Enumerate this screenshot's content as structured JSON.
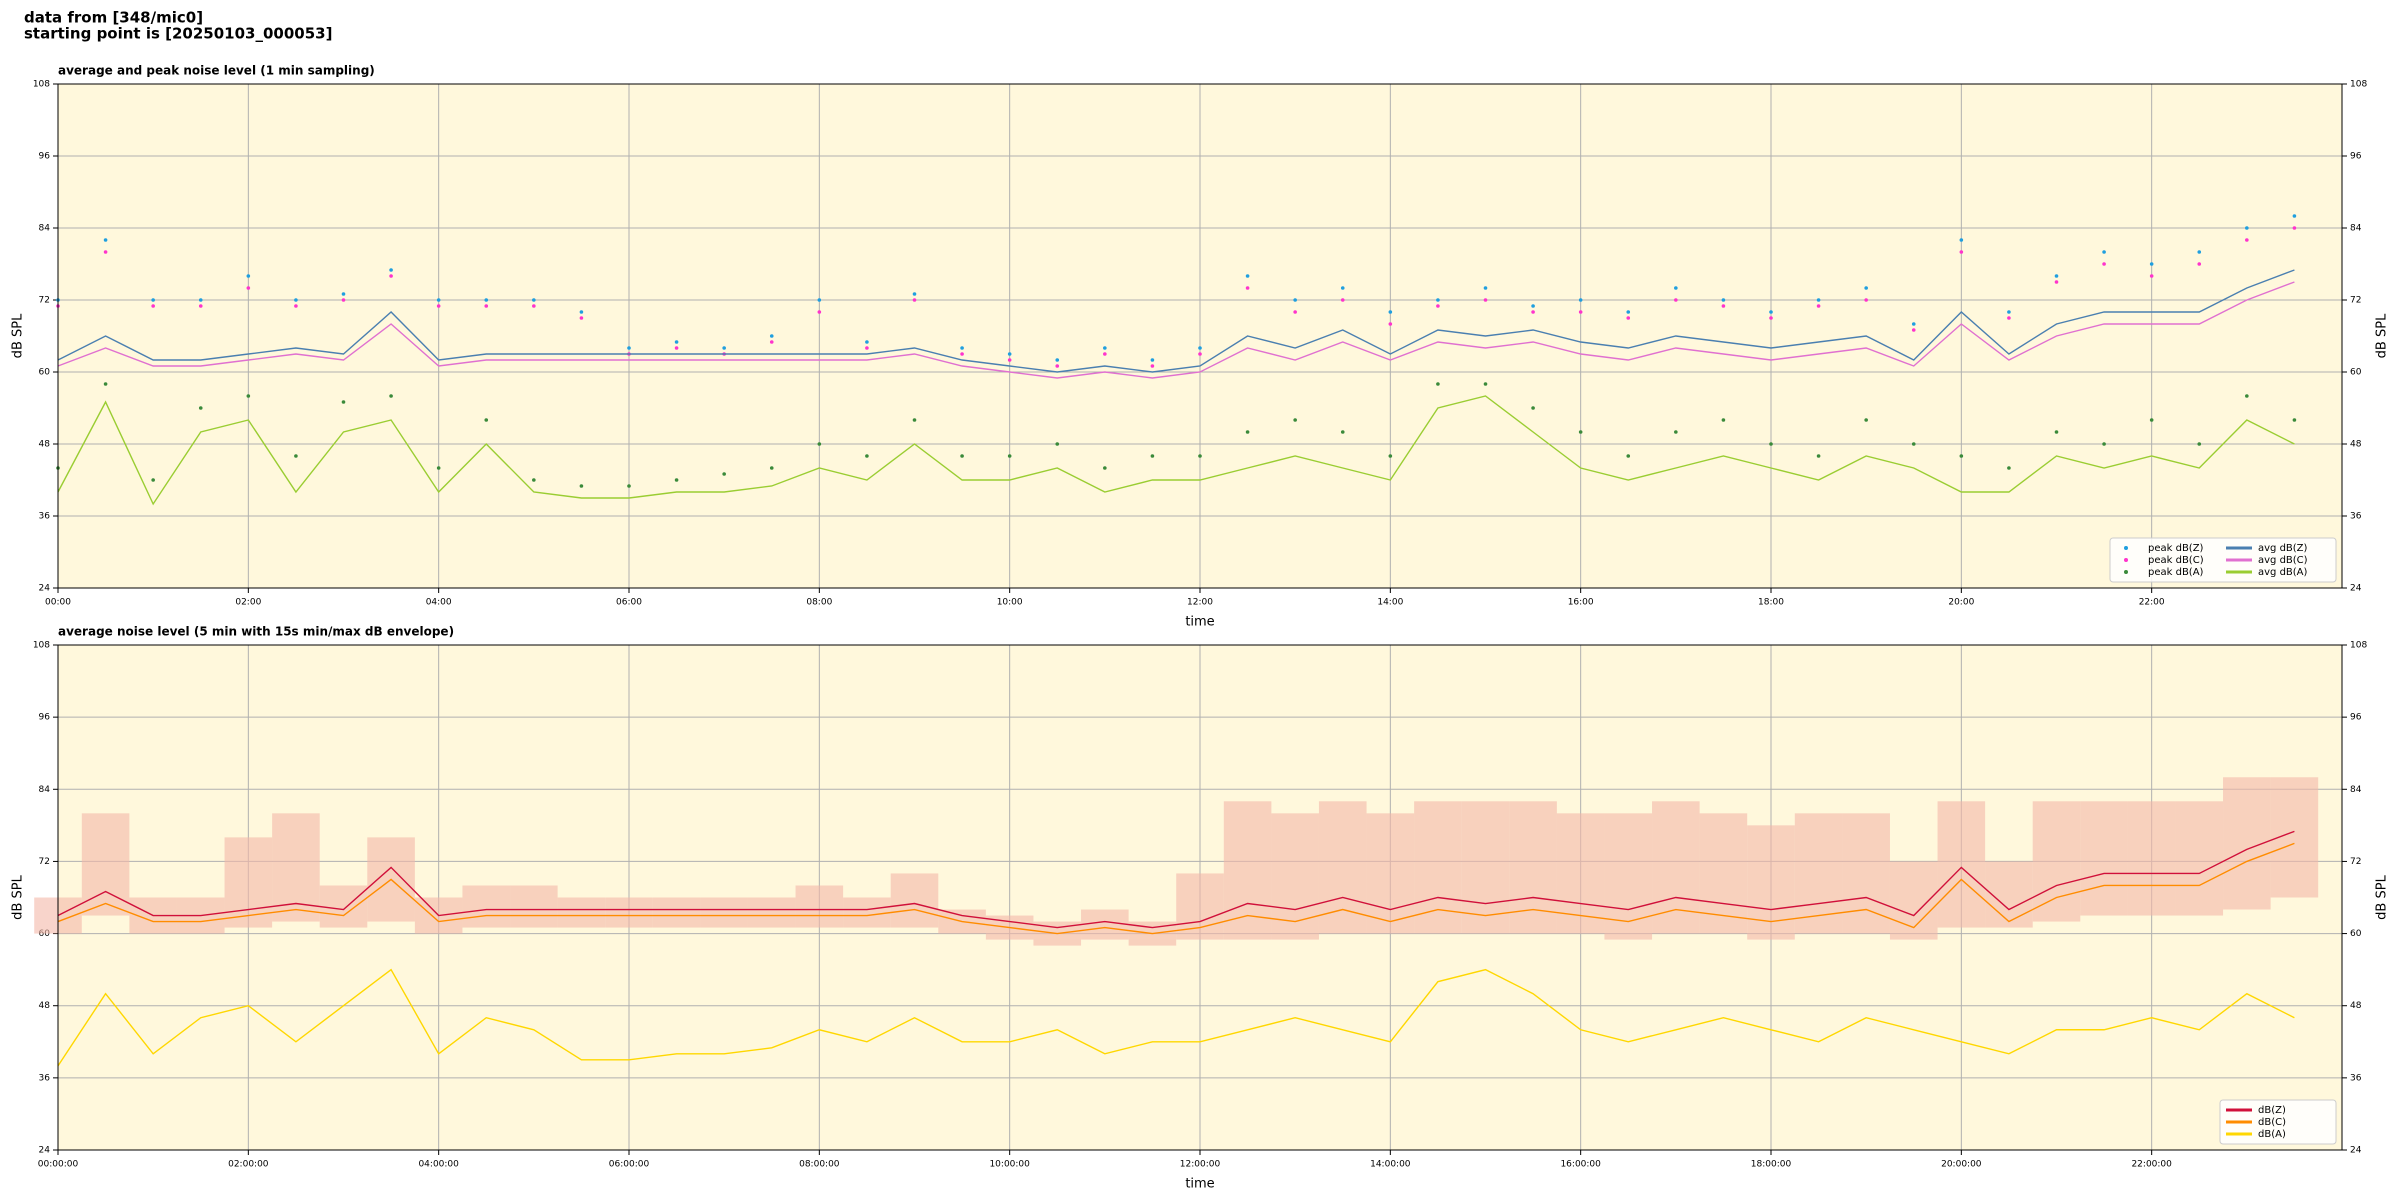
{
  "header": [
    "data from [348/mic0]",
    "starting point is [20250103_000053]"
  ],
  "chart_data": [
    {
      "type": "line",
      "title": "average and peak noise level (1 min sampling)",
      "xlabel": "time",
      "ylabel": "dB SPL",
      "xlim": [
        0,
        24
      ],
      "ylim": [
        24,
        108
      ],
      "yticks": [
        24,
        36,
        48,
        60,
        72,
        84,
        96,
        108
      ],
      "xticks": [
        {
          "value": 0,
          "label": "00:00"
        },
        {
          "value": 2,
          "label": "02:00"
        },
        {
          "value": 4,
          "label": "04:00"
        },
        {
          "value": 6,
          "label": "06:00"
        },
        {
          "value": 8,
          "label": "08:00"
        },
        {
          "value": 10,
          "label": "10:00"
        },
        {
          "value": 12,
          "label": "12:00"
        },
        {
          "value": 14,
          "label": "14:00"
        },
        {
          "value": 16,
          "label": "16:00"
        },
        {
          "value": 18,
          "label": "18:00"
        },
        {
          "value": 20,
          "label": "20:00"
        },
        {
          "value": 22,
          "label": "22:00"
        }
      ],
      "grid": true,
      "legend": "lower right",
      "background": "#fff8dc",
      "x": [
        0,
        0.5,
        1,
        1.5,
        2,
        2.5,
        3,
        3.5,
        4,
        4.5,
        5,
        5.5,
        6,
        6.5,
        7,
        7.5,
        8,
        8.5,
        9,
        9.5,
        10,
        10.5,
        11,
        11.5,
        12,
        12.5,
        13,
        13.5,
        14,
        14.5,
        15,
        15.5,
        16,
        16.5,
        17,
        17.5,
        18,
        18.5,
        19,
        19.5,
        20,
        20.5,
        21,
        21.5,
        22,
        22.5,
        23,
        23.5
      ],
      "series": [
        {
          "name": "peak dB(Z)",
          "type": "scatter",
          "color": "#1f9fdf",
          "values": [
            72,
            82,
            72,
            72,
            76,
            72,
            73,
            77,
            72,
            72,
            72,
            70,
            64,
            65,
            64,
            66,
            72,
            65,
            73,
            64,
            63,
            62,
            64,
            62,
            64,
            76,
            72,
            74,
            70,
            72,
            74,
            71,
            72,
            70,
            74,
            72,
            70,
            72,
            74,
            68,
            82,
            70,
            76,
            80,
            78,
            80,
            84,
            86
          ]
        },
        {
          "name": "peak dB(C)",
          "type": "scatter",
          "color": "#ff33cc",
          "values": [
            71,
            80,
            71,
            71,
            74,
            71,
            72,
            76,
            71,
            71,
            71,
            69,
            63,
            64,
            63,
            65,
            70,
            64,
            72,
            63,
            62,
            61,
            63,
            61,
            63,
            74,
            70,
            72,
            68,
            71,
            72,
            70,
            70,
            69,
            72,
            71,
            69,
            71,
            72,
            67,
            80,
            69,
            75,
            78,
            76,
            78,
            82,
            84
          ]
        },
        {
          "name": "peak dB(A)",
          "type": "scatter",
          "color": "#3a8a3a",
          "values": [
            44,
            58,
            42,
            54,
            56,
            46,
            55,
            56,
            44,
            52,
            42,
            41,
            41,
            42,
            43,
            44,
            48,
            46,
            52,
            46,
            46,
            48,
            44,
            46,
            46,
            50,
            52,
            50,
            46,
            58,
            58,
            54,
            50,
            46,
            50,
            52,
            48,
            46,
            52,
            48,
            46,
            44,
            50,
            48,
            52,
            48,
            56,
            52
          ]
        },
        {
          "name": "avg dB(Z)",
          "type": "line",
          "color": "#4a7fb0",
          "values": [
            62,
            66,
            62,
            62,
            63,
            64,
            63,
            70,
            62,
            63,
            63,
            63,
            63,
            63,
            63,
            63,
            63,
            63,
            64,
            62,
            61,
            60,
            61,
            60,
            61,
            66,
            64,
            67,
            63,
            67,
            66,
            67,
            65,
            64,
            66,
            65,
            64,
            65,
            66,
            62,
            70,
            63,
            68,
            70,
            70,
            70,
            74,
            77
          ]
        },
        {
          "name": "avg dB(C)",
          "type": "line",
          "color": "#e070d0",
          "values": [
            61,
            64,
            61,
            61,
            62,
            63,
            62,
            68,
            61,
            62,
            62,
            62,
            62,
            62,
            62,
            62,
            62,
            62,
            63,
            61,
            60,
            59,
            60,
            59,
            60,
            64,
            62,
            65,
            62,
            65,
            64,
            65,
            63,
            62,
            64,
            63,
            62,
            63,
            64,
            61,
            68,
            62,
            66,
            68,
            68,
            68,
            72,
            75
          ]
        },
        {
          "name": "avg dB(A)",
          "type": "line",
          "color": "#9acd32",
          "values": [
            40,
            55,
            38,
            50,
            52,
            40,
            50,
            52,
            40,
            48,
            40,
            39,
            39,
            40,
            40,
            41,
            44,
            42,
            48,
            42,
            42,
            44,
            40,
            42,
            42,
            44,
            46,
            44,
            42,
            54,
            56,
            50,
            44,
            42,
            44,
            46,
            44,
            42,
            46,
            44,
            40,
            40,
            46,
            44,
            46,
            44,
            52,
            48
          ]
        }
      ]
    },
    {
      "type": "line",
      "title": "average noise level (5 min with 15s min/max dB envelope)",
      "xlabel": "time",
      "ylabel": "dB SPL",
      "xlim": [
        0,
        24
      ],
      "ylim": [
        24,
        108
      ],
      "yticks": [
        24,
        36,
        48,
        60,
        72,
        84,
        96,
        108
      ],
      "xticks": [
        {
          "value": 0,
          "label": "00:00:00"
        },
        {
          "value": 2,
          "label": "02:00:00"
        },
        {
          "value": 4,
          "label": "04:00:00"
        },
        {
          "value": 6,
          "label": "06:00:00"
        },
        {
          "value": 8,
          "label": "08:00:00"
        },
        {
          "value": 10,
          "label": "10:00:00"
        },
        {
          "value": 12,
          "label": "12:00:00"
        },
        {
          "value": 14,
          "label": "14:00:00"
        },
        {
          "value": 16,
          "label": "16:00:00"
        },
        {
          "value": 18,
          "label": "18:00:00"
        },
        {
          "value": 20,
          "label": "20:00:00"
        },
        {
          "value": 22,
          "label": "22:00:00"
        }
      ],
      "grid": true,
      "legend": "lower right",
      "background": "#fff8dc",
      "envelope_color": "#f4b8a8",
      "x": [
        0,
        0.5,
        1,
        1.5,
        2,
        2.5,
        3,
        3.5,
        4,
        4.5,
        5,
        5.5,
        6,
        6.5,
        7,
        7.5,
        8,
        8.5,
        9,
        9.5,
        10,
        10.5,
        11,
        11.5,
        12,
        12.5,
        13,
        13.5,
        14,
        14.5,
        15,
        15.5,
        16,
        16.5,
        17,
        17.5,
        18,
        18.5,
        19,
        19.5,
        20,
        20.5,
        21,
        21.5,
        22,
        22.5,
        23,
        23.5
      ],
      "series": [
        {
          "name": "dB(Z)",
          "type": "line",
          "color": "#d0103a",
          "values": [
            63,
            67,
            63,
            63,
            64,
            65,
            64,
            71,
            63,
            64,
            64,
            64,
            64,
            64,
            64,
            64,
            64,
            64,
            65,
            63,
            62,
            61,
            62,
            61,
            62,
            65,
            64,
            66,
            64,
            66,
            65,
            66,
            65,
            64,
            66,
            65,
            64,
            65,
            66,
            63,
            71,
            64,
            68,
            70,
            70,
            70,
            74,
            77
          ],
          "max": [
            66,
            80,
            66,
            66,
            76,
            80,
            68,
            76,
            66,
            68,
            68,
            66,
            66,
            66,
            66,
            66,
            68,
            66,
            70,
            64,
            63,
            62,
            64,
            62,
            70,
            82,
            80,
            82,
            80,
            82,
            82,
            82,
            80,
            80,
            82,
            80,
            78,
            80,
            80,
            72,
            82,
            72,
            82,
            82,
            82,
            82,
            86,
            86
          ],
          "min": [
            60,
            63,
            60,
            60,
            61,
            62,
            61,
            62,
            60,
            61,
            61,
            61,
            61,
            61,
            61,
            61,
            61,
            61,
            61,
            60,
            59,
            58,
            59,
            58,
            59,
            59,
            59,
            60,
            60,
            60,
            60,
            60,
            60,
            59,
            60,
            60,
            59,
            60,
            60,
            59,
            61,
            61,
            62,
            63,
            63,
            63,
            64,
            66
          ]
        },
        {
          "name": "dB(C)",
          "type": "line",
          "color": "#ff8c00",
          "values": [
            62,
            65,
            62,
            62,
            63,
            64,
            63,
            69,
            62,
            63,
            63,
            63,
            63,
            63,
            63,
            63,
            63,
            63,
            64,
            62,
            61,
            60,
            61,
            60,
            61,
            63,
            62,
            64,
            62,
            64,
            63,
            64,
            63,
            62,
            64,
            63,
            62,
            63,
            64,
            61,
            69,
            62,
            66,
            68,
            68,
            68,
            72,
            75
          ]
        },
        {
          "name": "dB(A)",
          "type": "line",
          "color": "#ffd700",
          "values": [
            38,
            50,
            40,
            46,
            48,
            42,
            48,
            54,
            40,
            46,
            44,
            39,
            39,
            40,
            40,
            41,
            44,
            42,
            46,
            42,
            42,
            44,
            40,
            42,
            42,
            44,
            46,
            44,
            42,
            52,
            54,
            50,
            44,
            42,
            44,
            46,
            44,
            42,
            46,
            44,
            42,
            40,
            44,
            44,
            46,
            44,
            50,
            46
          ]
        }
      ]
    }
  ]
}
